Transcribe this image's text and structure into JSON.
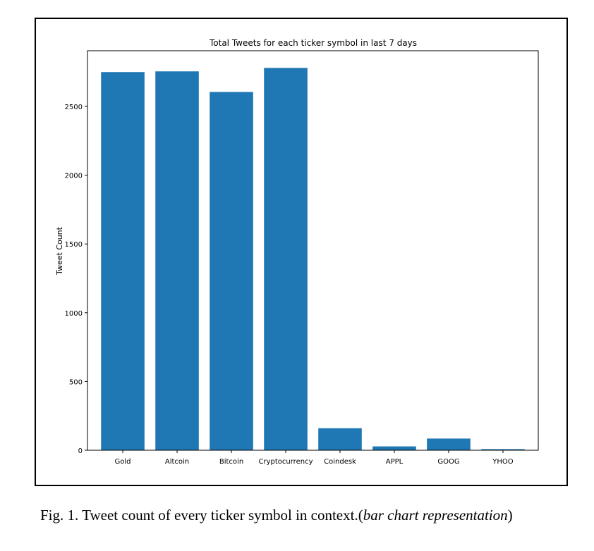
{
  "chart_data": {
    "type": "bar",
    "title": "Total Tweets for each ticker symbol in last 7 days",
    "xlabel": "",
    "ylabel": "Tweet Count",
    "categories": [
      "Gold",
      "Altcoin",
      "Bitcoin",
      "Cryptocurrency",
      "Coindesk",
      "APPL",
      "GOOG",
      "YHOO"
    ],
    "values": [
      2750,
      2755,
      2605,
      2780,
      160,
      28,
      85,
      8
    ],
    "yticks": [
      0,
      500,
      1000,
      1500,
      2000,
      2500
    ],
    "ylim": [
      0,
      2905
    ],
    "grid": false,
    "bar_color": "#1f77b4"
  },
  "caption": {
    "prefix": "Fig. 1.",
    "text": "Tweet count of every ticker symbol in context.(",
    "italic": "bar chart representation",
    "suffix": ")"
  }
}
